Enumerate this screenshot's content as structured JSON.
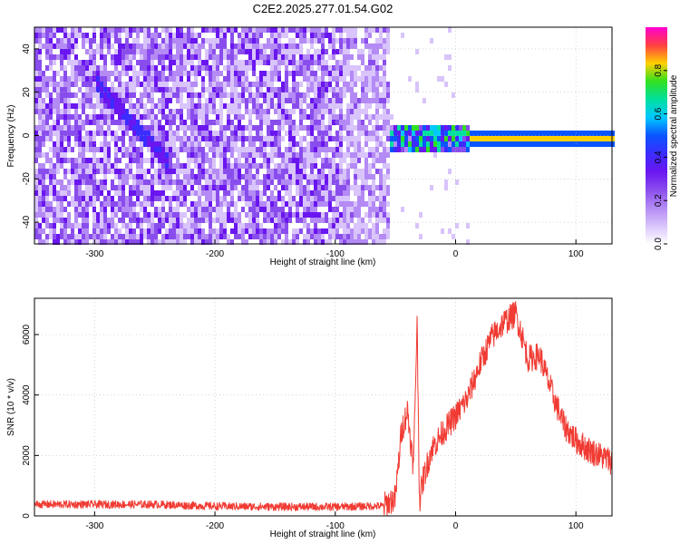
{
  "title": "C2E2.2025.277.01.54.G02",
  "colors": {
    "accent": "#f03a32",
    "spectrogram_palette": [
      "#ffffff",
      "#d9c4fb",
      "#b48af5",
      "#8a4ded",
      "#6a16f0",
      "#3b2cff",
      "#0a55ff",
      "#00c8ff",
      "#00e0a0",
      "#30e020",
      "#ffd000",
      "#ff4040",
      "#ff00d0"
    ]
  },
  "chart_data": [
    {
      "type": "heatmap",
      "xlabel": "Height of straight line (km)",
      "ylabel": "Frequency (Hz)",
      "xlim": [
        -350,
        130
      ],
      "ylim": [
        -50,
        50
      ],
      "xticks": [
        -300,
        -200,
        -100,
        0,
        100
      ],
      "yticks": [
        -40,
        -20,
        0,
        20,
        40
      ],
      "colorbar": {
        "label": "Normalized spectral amplitude",
        "range": [
          0.0,
          1.0
        ],
        "ticks": [
          0.0,
          0.2,
          0.4,
          0.6,
          0.8
        ]
      },
      "grid": true
    },
    {
      "type": "line",
      "xlabel": "Height of straight line (km)",
      "ylabel": "SNR (10 * v/v)",
      "xlim": [
        -350,
        130
      ],
      "ylim": [
        0,
        7200
      ],
      "xticks": [
        -300,
        -200,
        -100,
        0,
        100
      ],
      "yticks": [
        0,
        2000,
        4000,
        6000
      ],
      "grid": true,
      "series": [
        {
          "color": "#f03a32",
          "x": [
            -350,
            -300,
            -250,
            -200,
            -150,
            -100,
            -60,
            -50,
            -45,
            -40,
            -35,
            -32,
            -30,
            -27,
            -20,
            -10,
            0,
            10,
            20,
            30,
            40,
            50,
            55,
            60,
            70,
            80,
            90,
            100,
            110,
            120,
            130
          ],
          "values": [
            380,
            380,
            380,
            320,
            300,
            300,
            330,
            600,
            2800,
            3500,
            1600,
            6500,
            500,
            1200,
            2200,
            2800,
            3300,
            3900,
            5000,
            5900,
            6400,
            6700,
            6000,
            5200,
            5300,
            4100,
            3000,
            2500,
            2200,
            2000,
            1800
          ]
        }
      ]
    }
  ]
}
